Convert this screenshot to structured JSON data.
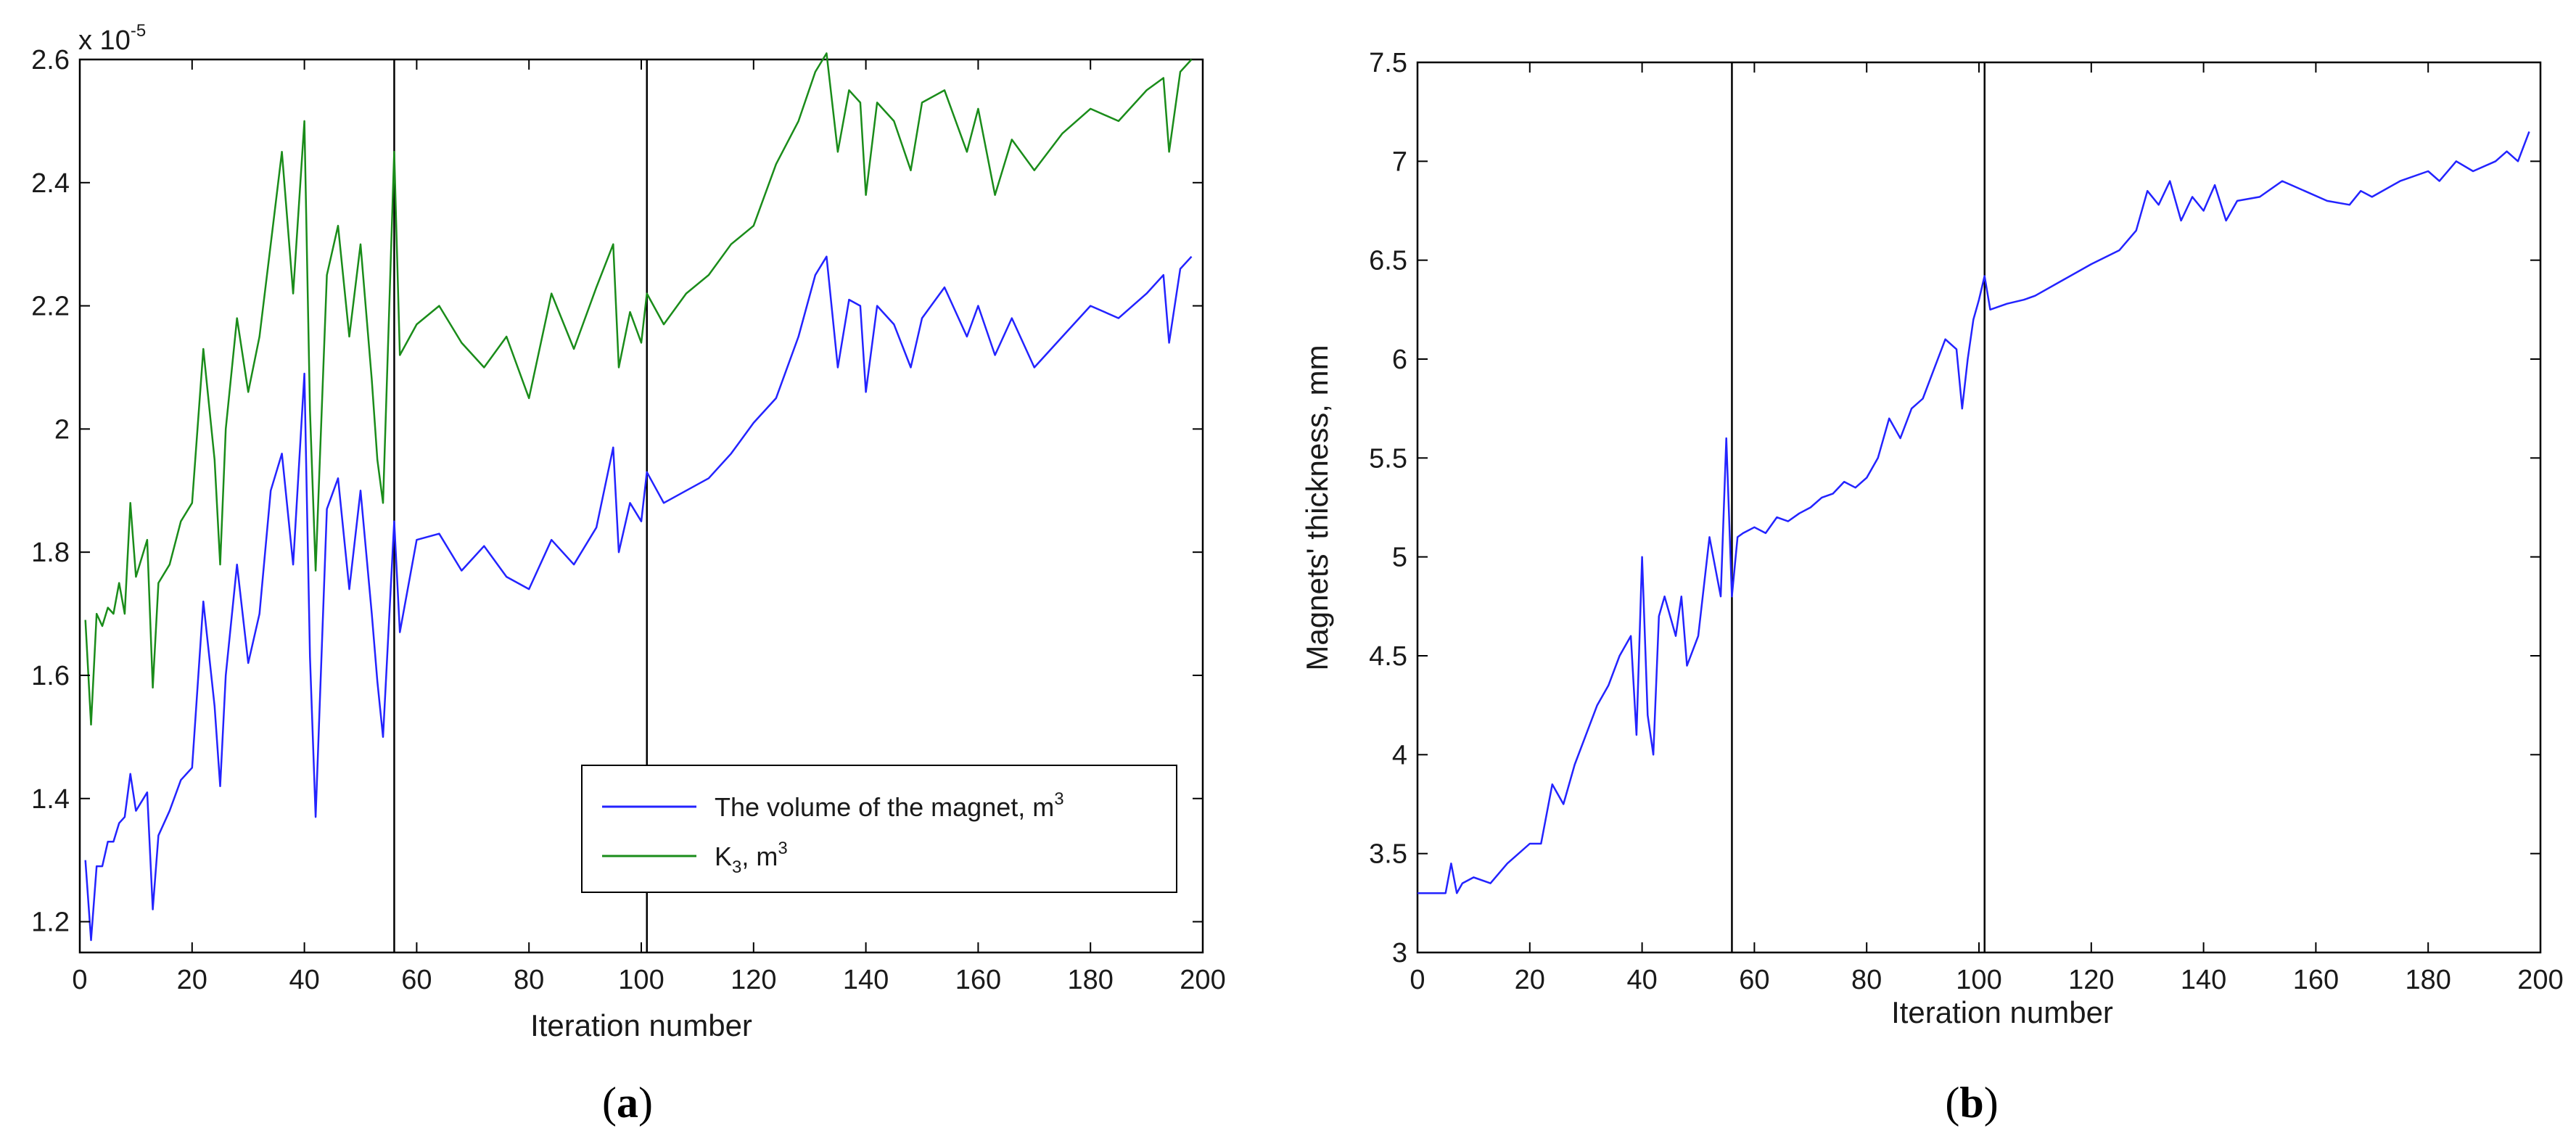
{
  "figure": {
    "panel_a_caption_letter": "a",
    "panel_b_caption_letter": "b"
  },
  "chart_data": [
    {
      "type": "line",
      "panel": "a",
      "title": "",
      "xlabel": "Iteration number",
      "ylabel": "",
      "y_multiplier_base": "x 10",
      "y_multiplier_exp": "-5",
      "xlim": [
        0,
        200
      ],
      "ylim": [
        1.15,
        2.6
      ],
      "x_ticks": [
        0,
        20,
        40,
        60,
        80,
        100,
        120,
        140,
        160,
        180,
        200
      ],
      "x_tick_labels": [
        "0",
        "20",
        "40",
        "60",
        "80",
        "100",
        "120",
        "140",
        "160",
        "180",
        "200"
      ],
      "y_ticks": [
        1.2,
        1.4,
        1.6,
        1.8,
        2.0,
        2.2,
        2.4,
        2.6
      ],
      "y_tick_labels": [
        "1.2",
        "1.4",
        "1.6",
        "1.8",
        "2",
        "2.2",
        "2.4",
        "2.6"
      ],
      "vlines": [
        56,
        101
      ],
      "legend": {
        "placement": "bottom-right",
        "entries": [
          {
            "text": "The volume of the magnet, m",
            "sup": "3",
            "color": "#2323ff"
          },
          {
            "text": "K",
            "sub": "3",
            "tail": ", m",
            "sup": "3",
            "color": "#1a8c1a"
          }
        ]
      },
      "series": [
        {
          "name": "The volume of the magnet, m3",
          "color": "#2323ff",
          "x": [
            1,
            2,
            3,
            4,
            5,
            6,
            7,
            8,
            9,
            10,
            12,
            13,
            14,
            16,
            18,
            20,
            22,
            24,
            25,
            26,
            28,
            30,
            32,
            34,
            36,
            38,
            40,
            41,
            42,
            44,
            46,
            48,
            50,
            52,
            53,
            54,
            56,
            57,
            60,
            64,
            68,
            72,
            76,
            80,
            84,
            88,
            92,
            95,
            96,
            98,
            100,
            101,
            104,
            108,
            112,
            116,
            120,
            124,
            128,
            131,
            133,
            135,
            137,
            139,
            140,
            142,
            145,
            148,
            150,
            154,
            158,
            160,
            163,
            166,
            170,
            175,
            180,
            185,
            190,
            193,
            194,
            196,
            198
          ],
          "values": [
            1.3,
            1.17,
            1.29,
            1.29,
            1.33,
            1.33,
            1.36,
            1.37,
            1.44,
            1.38,
            1.41,
            1.22,
            1.34,
            1.38,
            1.43,
            1.45,
            1.72,
            1.55,
            1.42,
            1.6,
            1.78,
            1.62,
            1.7,
            1.9,
            1.96,
            1.78,
            2.09,
            1.63,
            1.37,
            1.87,
            1.92,
            1.74,
            1.9,
            1.7,
            1.59,
            1.5,
            1.85,
            1.67,
            1.82,
            1.83,
            1.77,
            1.81,
            1.76,
            1.74,
            1.82,
            1.78,
            1.84,
            1.97,
            1.8,
            1.88,
            1.85,
            1.93,
            1.88,
            1.9,
            1.92,
            1.96,
            2.01,
            2.05,
            2.15,
            2.25,
            2.28,
            2.1,
            2.21,
            2.2,
            2.06,
            2.2,
            2.17,
            2.1,
            2.18,
            2.23,
            2.15,
            2.2,
            2.12,
            2.18,
            2.1,
            2.15,
            2.2,
            2.18,
            2.22,
            2.25,
            2.14,
            2.26,
            2.28
          ]
        },
        {
          "name": "K3, m3",
          "color": "#1a8c1a",
          "x": [
            1,
            2,
            3,
            4,
            5,
            6,
            7,
            8,
            9,
            10,
            12,
            13,
            14,
            16,
            18,
            20,
            22,
            24,
            25,
            26,
            28,
            30,
            32,
            34,
            36,
            38,
            40,
            41,
            42,
            44,
            46,
            48,
            50,
            52,
            53,
            54,
            56,
            57,
            60,
            64,
            68,
            72,
            76,
            80,
            84,
            88,
            92,
            95,
            96,
            98,
            100,
            101,
            104,
            108,
            112,
            116,
            120,
            124,
            128,
            131,
            133,
            135,
            137,
            139,
            140,
            142,
            145,
            148,
            150,
            154,
            158,
            160,
            163,
            166,
            170,
            175,
            180,
            185,
            190,
            193,
            194,
            196,
            198
          ],
          "values": [
            1.69,
            1.52,
            1.7,
            1.68,
            1.71,
            1.7,
            1.75,
            1.7,
            1.88,
            1.76,
            1.82,
            1.58,
            1.75,
            1.78,
            1.85,
            1.88,
            2.13,
            1.95,
            1.78,
            2.0,
            2.18,
            2.06,
            2.15,
            2.3,
            2.45,
            2.22,
            2.5,
            2.03,
            1.77,
            2.25,
            2.33,
            2.15,
            2.3,
            2.08,
            1.95,
            1.88,
            2.45,
            2.12,
            2.17,
            2.2,
            2.14,
            2.1,
            2.15,
            2.05,
            2.22,
            2.13,
            2.23,
            2.3,
            2.1,
            2.19,
            2.14,
            2.22,
            2.17,
            2.22,
            2.25,
            2.3,
            2.33,
            2.43,
            2.5,
            2.58,
            2.61,
            2.45,
            2.55,
            2.53,
            2.38,
            2.53,
            2.5,
            2.42,
            2.53,
            2.55,
            2.45,
            2.52,
            2.38,
            2.47,
            2.42,
            2.48,
            2.52,
            2.5,
            2.55,
            2.57,
            2.45,
            2.58,
            2.6
          ]
        }
      ]
    },
    {
      "type": "line",
      "panel": "b",
      "title": "",
      "xlabel": "Iteration number",
      "ylabel": "Magnets' thickness, mm",
      "xlim": [
        0,
        200
      ],
      "ylim": [
        3,
        7.5
      ],
      "x_ticks": [
        0,
        20,
        40,
        60,
        80,
        100,
        120,
        140,
        160,
        180,
        200
      ],
      "x_tick_labels": [
        "0",
        "20",
        "40",
        "60",
        "80",
        "100",
        "120",
        "140",
        "160",
        "180",
        "200"
      ],
      "y_ticks": [
        3,
        3.5,
        4,
        4.5,
        5,
        5.5,
        6,
        6.5,
        7,
        7.5
      ],
      "y_tick_labels": [
        "3",
        "3.5",
        "4",
        "4.5",
        "5",
        "5.5",
        "6",
        "6.5",
        "7",
        "7.5"
      ],
      "vlines": [
        56,
        101
      ],
      "series": [
        {
          "name": "Magnets' thickness",
          "color": "#2323ff",
          "x": [
            0,
            5,
            6,
            7,
            8,
            10,
            13,
            16,
            18,
            20,
            22,
            24,
            26,
            28,
            30,
            32,
            34,
            36,
            38,
            39,
            40,
            41,
            42,
            43,
            44,
            46,
            47,
            48,
            50,
            52,
            54,
            55,
            56,
            57,
            58,
            60,
            62,
            64,
            66,
            68,
            70,
            72,
            74,
            76,
            78,
            80,
            82,
            84,
            86,
            88,
            90,
            92,
            94,
            96,
            97,
            98,
            99,
            100,
            101,
            102,
            105,
            108,
            110,
            115,
            120,
            125,
            128,
            130,
            132,
            134,
            136,
            138,
            140,
            142,
            144,
            146,
            150,
            154,
            158,
            162,
            166,
            168,
            170,
            175,
            180,
            182,
            185,
            188,
            192,
            194,
            196,
            198
          ],
          "values": [
            3.3,
            3.3,
            3.45,
            3.3,
            3.35,
            3.38,
            3.35,
            3.45,
            3.5,
            3.55,
            3.55,
            3.85,
            3.75,
            3.95,
            4.1,
            4.25,
            4.35,
            4.5,
            4.6,
            4.1,
            5.0,
            4.2,
            4.0,
            4.7,
            4.8,
            4.6,
            4.8,
            4.45,
            4.6,
            5.1,
            4.8,
            5.6,
            4.8,
            5.1,
            5.12,
            5.15,
            5.12,
            5.2,
            5.18,
            5.22,
            5.25,
            5.3,
            5.32,
            5.38,
            5.35,
            5.4,
            5.5,
            5.7,
            5.6,
            5.75,
            5.8,
            5.95,
            6.1,
            6.05,
            5.75,
            6.0,
            6.2,
            6.3,
            6.42,
            6.25,
            6.28,
            6.3,
            6.32,
            6.4,
            6.48,
            6.55,
            6.65,
            6.85,
            6.78,
            6.9,
            6.7,
            6.82,
            6.75,
            6.88,
            6.7,
            6.8,
            6.82,
            6.9,
            6.85,
            6.8,
            6.78,
            6.85,
            6.82,
            6.9,
            6.95,
            6.9,
            7.0,
            6.95,
            7.0,
            7.05,
            7.0,
            7.15
          ]
        }
      ]
    }
  ]
}
